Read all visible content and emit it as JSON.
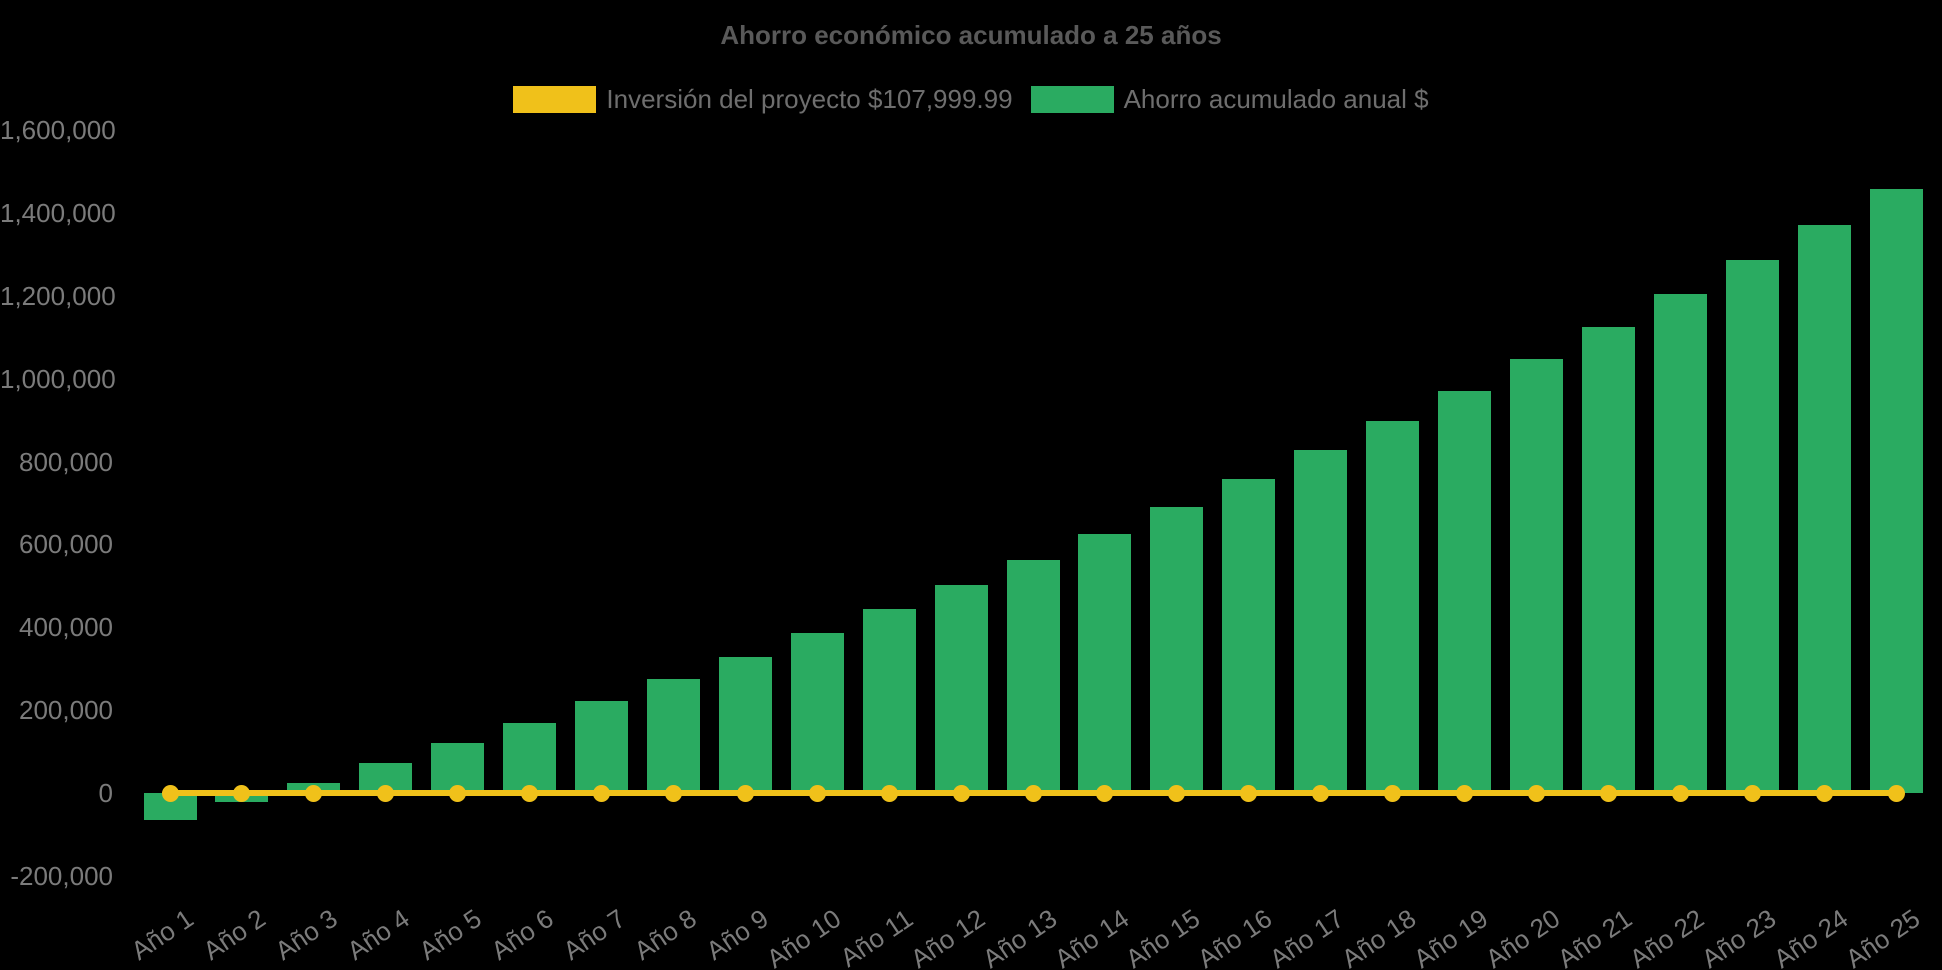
{
  "chart_title": "Ahorro económico acumulado a 25 años",
  "legend": {
    "items": [
      {
        "label": "Inversión del proyecto $107,999.99",
        "color": "#f0c11a",
        "series_type": "line"
      },
      {
        "label": "Ahorro acumulado anual $",
        "color": "#2aab61",
        "series_type": "bar"
      }
    ]
  },
  "chart_data": {
    "type": "bar",
    "title": "Ahorro económico acumulado a 25 años",
    "categories": [
      "Año 1",
      "Año 2",
      "Año 3",
      "Año 4",
      "Año 5",
      "Año 6",
      "Año 7",
      "Año 8",
      "Año 9",
      "Año 10",
      "Año 11",
      "Año 12",
      "Año 13",
      "Año 14",
      "Año 15",
      "Año 16",
      "Año 17",
      "Año 18",
      "Año 19",
      "Año 20",
      "Año 21",
      "Año 22",
      "Año 23",
      "Año 24",
      "Año 25"
    ],
    "series": [
      {
        "name": "Inversión del proyecto $107,999.99",
        "type": "line",
        "color": "#f0c11a",
        "values": [
          0,
          0,
          0,
          0,
          0,
          0,
          0,
          0,
          0,
          0,
          0,
          0,
          0,
          0,
          0,
          0,
          0,
          0,
          0,
          0,
          0,
          0,
          0,
          0,
          0
        ]
      },
      {
        "name": "Ahorro acumulado anual $",
        "type": "bar",
        "color": "#2aab61",
        "values": [
          -65000,
          -21000,
          25000,
          72000,
          120000,
          170000,
          221000,
          274000,
          329000,
          385000,
          443000,
          502000,
          563000,
          626000,
          691000,
          758000,
          827000,
          898000,
          971000,
          1047000,
          1124000,
          1204000,
          1286000,
          1371000,
          1458000
        ]
      }
    ],
    "ylim": [
      -200000,
      1600000
    ],
    "y_tick_step": 200000,
    "y_tick_labels": [
      "-200,000",
      "0",
      "200,000",
      "400,000",
      "600,000",
      "800,000",
      "1,000,000",
      "1,200,000",
      "1,400,000",
      "1,600,000"
    ],
    "grid": false,
    "legend_position": "top",
    "background_color": "#000000",
    "text_colors": {
      "title": "#595959",
      "axis": "#7b7b7b",
      "legend": "#6e6e6e"
    }
  }
}
